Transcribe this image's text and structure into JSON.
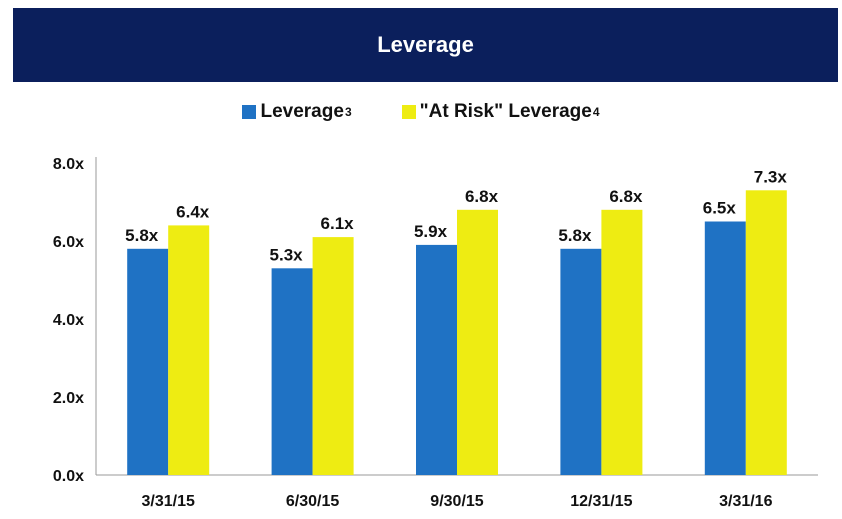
{
  "chart_data": {
    "type": "bar",
    "title": "Leverage",
    "categories": [
      "3/31/15",
      "6/30/15",
      "9/30/15",
      "12/31/15",
      "3/31/16"
    ],
    "series": [
      {
        "name": "Leverage",
        "footnote": "3",
        "color": "#1f72c4",
        "values": [
          5.8,
          5.3,
          5.9,
          5.8,
          6.5
        ],
        "labels": [
          "5.8x",
          "5.3x",
          "5.9x",
          "5.8x",
          "6.5x"
        ]
      },
      {
        "name": "\"At Risk\" Leverage",
        "footnote": "4",
        "color": "#eeec12",
        "values": [
          6.4,
          6.1,
          6.8,
          6.8,
          7.3
        ],
        "labels": [
          "6.4x",
          "6.1x",
          "6.8x",
          "6.8x",
          "7.3x"
        ]
      }
    ],
    "ylim": [
      0,
      8
    ],
    "yticks": [
      "0.0x",
      "2.0x",
      "4.0x",
      "6.0x",
      "8.0x"
    ],
    "ytick_values": [
      0,
      2,
      4,
      6,
      8
    ],
    "grid": false,
    "legend_position": "top-center",
    "header_color": "#0b1f5c"
  }
}
